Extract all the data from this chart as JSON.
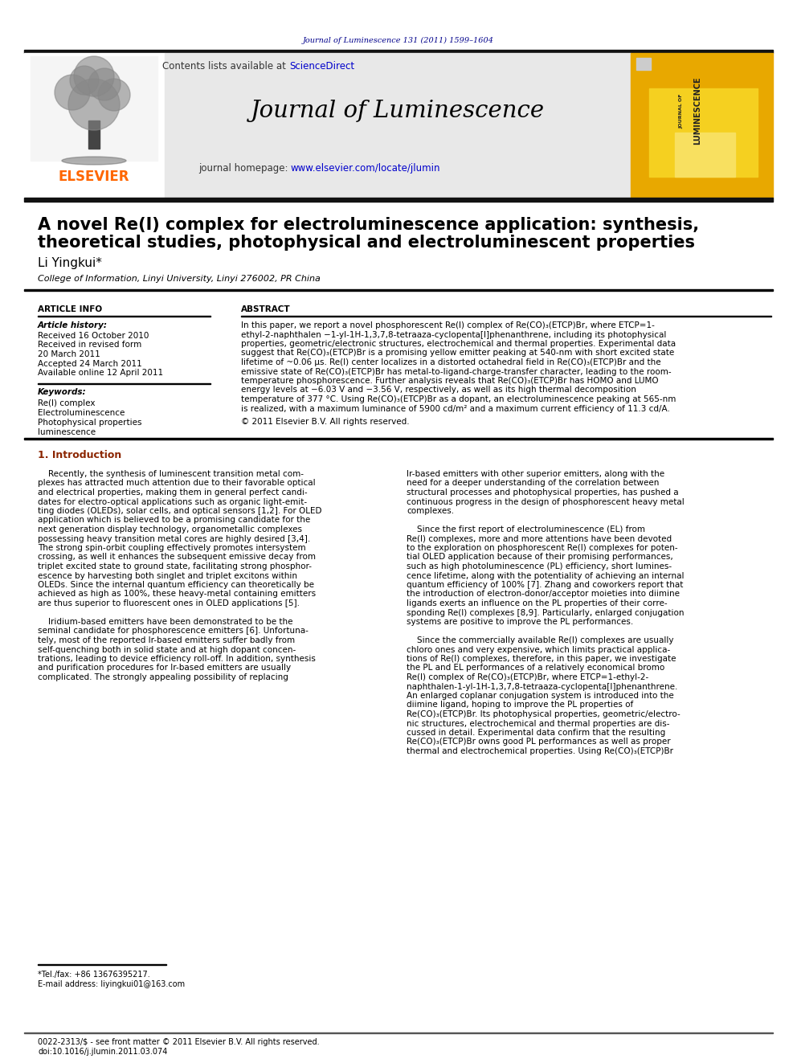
{
  "journal_ref": "Journal of Luminescence 131 (2011) 1599–1604",
  "journal_ref_color": "#00008B",
  "header_bg": "#e8e8e8",
  "contents_text": "Contents lists available at ",
  "sciencedirect_text": "ScienceDirect",
  "sciencedirect_color": "#0000CC",
  "journal_title": "Journal of Luminescence",
  "homepage_text": "journal homepage: ",
  "homepage_url": "www.elsevier.com/locate/jlumin",
  "homepage_url_color": "#0000CC",
  "elsevier_color": "#FF6600",
  "elsevier_text": "ELSEVIER",
  "journal_cover_bg": "#E8A800",
  "paper_title_line1": "A novel Re(I) complex for electroluminescence application: synthesis,",
  "paper_title_line2": "theoretical studies, photophysical and electroluminescent properties",
  "author": "Li Yingkui*",
  "affiliation": "College of Information, Linyi University, Linyi 276002, PR China",
  "article_info_label": "ARTICLE INFO",
  "abstract_label": "ABSTRACT",
  "article_history_label": "Article history:",
  "received_text": "Received 16 October 2010",
  "received_revised_text": "Received in revised form",
  "received_revised_date": "20 March 2011",
  "accepted_text": "Accepted 24 March 2011",
  "available_text": "Available online 12 April 2011",
  "keywords_label": "Keywords:",
  "keywords": [
    "Re(I) complex",
    "Electroluminescence",
    "Photophysical properties",
    "luminescence"
  ],
  "copyright_text": "© 2011 Elsevier B.V. All rights reserved.",
  "intro_label": "1. Introduction",
  "footnote_tel": "*Tel./fax: +86 13676395217.",
  "footnote_email": "E-mail address: liyingkui01@163.com",
  "footer_text": "0022-2313/$ - see front matter © 2011 Elsevier B.V. All rights reserved.",
  "footer_doi": "doi:10.1016/j.jlumin.2011.03.074",
  "bg_color": "#ffffff",
  "text_color": "#000000"
}
